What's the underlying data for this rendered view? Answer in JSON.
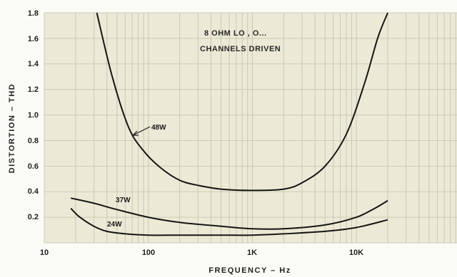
{
  "chart_data": {
    "type": "line",
    "title": "",
    "xlabel": "FREQUENCY – Hz",
    "ylabel": "DISTORTION – THD",
    "xscale": "log",
    "xlim": [
      10,
      100000
    ],
    "ylim": [
      0,
      1.8
    ],
    "grid": true,
    "yticks": [
      "1.8",
      "1.6",
      "1.4",
      "1.2",
      "1.0",
      "0.8",
      "0.6",
      "0.4",
      "0.2"
    ],
    "xticks": [
      "10",
      "100",
      "1K",
      "10K"
    ],
    "annotations": [
      "8 OHM LO   ,  O...",
      "CHANNELS DRIVEN"
    ],
    "series": [
      {
        "name": "48W",
        "x": [
          32,
          45,
          65,
          90,
          130,
          200,
          300,
          500,
          1000,
          2000,
          3000,
          5000,
          8000,
          12000,
          16000,
          20000
        ],
        "y": [
          1.8,
          1.3,
          0.9,
          0.72,
          0.59,
          0.49,
          0.45,
          0.42,
          0.41,
          0.42,
          0.47,
          0.6,
          0.85,
          1.25,
          1.6,
          1.8
        ]
      },
      {
        "name": "37W",
        "x": [
          18,
          30,
          50,
          100,
          200,
          500,
          1000,
          2000,
          5000,
          10000,
          15000,
          20000
        ],
        "y": [
          0.35,
          0.31,
          0.26,
          0.2,
          0.16,
          0.13,
          0.11,
          0.11,
          0.14,
          0.2,
          0.27,
          0.33
        ]
      },
      {
        "name": "24W",
        "x": [
          18,
          22,
          30,
          40,
          60,
          100,
          200,
          500,
          1000,
          2000,
          5000,
          10000,
          20000
        ],
        "y": [
          0.27,
          0.2,
          0.13,
          0.09,
          0.07,
          0.06,
          0.06,
          0.06,
          0.06,
          0.07,
          0.09,
          0.12,
          0.18
        ]
      }
    ]
  }
}
